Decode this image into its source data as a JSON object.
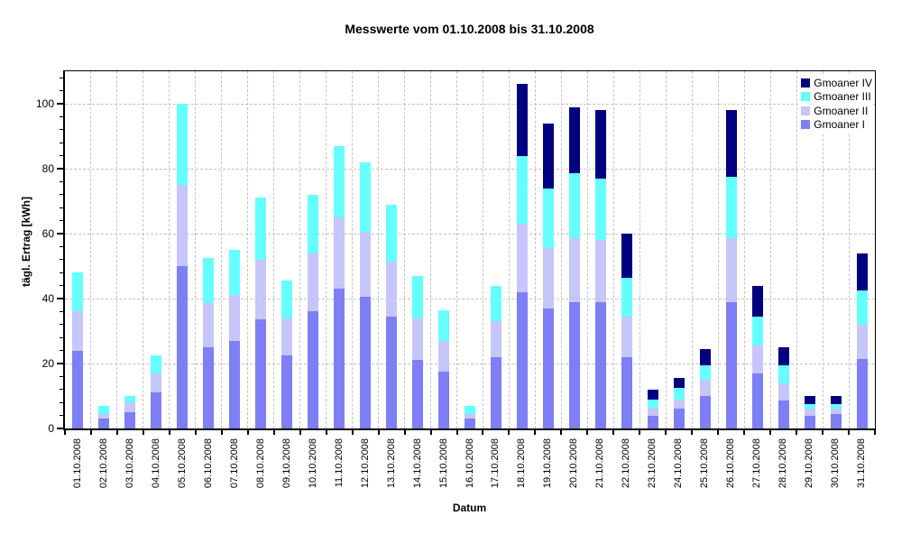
{
  "chart_data": {
    "type": "bar",
    "stacked": true,
    "title": "Messwerte vom 01.10.2008 bis 31.10.2008",
    "xlabel": "Datum",
    "ylabel": "tägl. Ertrag [kWh]",
    "ylim": [
      0,
      110
    ],
    "yticks": [
      0,
      20,
      40,
      60,
      80,
      100
    ],
    "y_minor_tick_step": 4,
    "grid": true,
    "legend_position": "top-right-inside",
    "legend_order": [
      "Gmoaner IV",
      "Gmoaner III",
      "Gmoaner II",
      "Gmoaner I"
    ],
    "categories": [
      "01.10.2008",
      "02.10.2008",
      "03.10.2008",
      "04.10.2008",
      "05.10.2008",
      "06.10.2008",
      "07.10.2008",
      "08.10.2008",
      "09.10.2008",
      "10.10.2008",
      "11.10.2008",
      "12.10.2008",
      "13.10.2008",
      "14.10.2008",
      "15.10.2008",
      "16.10.2008",
      "17.10.2008",
      "18.10.2008",
      "19.10.2008",
      "20.10.2008",
      "21.10.2008",
      "22.10.2008",
      "23.10.2008",
      "24.10.2008",
      "25.10.2008",
      "26.10.2008",
      "27.10.2008",
      "28.10.2008",
      "29.10.2008",
      "30.10.2008",
      "31.10.2008"
    ],
    "series": [
      {
        "name": "Gmoaner I",
        "color": "#7e7ef5",
        "values": [
          24,
          3,
          5,
          11,
          50,
          25,
          27,
          33.5,
          22.5,
          36,
          43,
          40.5,
          34.5,
          21,
          17.5,
          3,
          22,
          42,
          37,
          39,
          39,
          22,
          4,
          6,
          10,
          39,
          17,
          8.5,
          4,
          4.5,
          21.5
        ]
      },
      {
        "name": "Gmoaner II",
        "color": "#c6c6fa",
        "values": [
          12,
          1.5,
          3,
          6,
          25,
          13.5,
          14,
          18.5,
          11.5,
          18,
          22,
          20,
          17,
          13,
          9.5,
          1.5,
          11,
          21,
          18.5,
          19.5,
          19,
          12.5,
          2.5,
          3,
          5,
          19.5,
          8.5,
          5.5,
          2,
          1.5,
          10.5
        ]
      },
      {
        "name": "Gmoaner III",
        "color": "#66ffff",
        "values": [
          12,
          2.5,
          2,
          5.5,
          25,
          14,
          14,
          19,
          11.5,
          18,
          22,
          21.5,
          17.5,
          13,
          9.5,
          2.5,
          11,
          21,
          18.5,
          20,
          19,
          12,
          2.5,
          3.5,
          4.5,
          19,
          9,
          5.5,
          1.5,
          1.5,
          10.5
        ]
      },
      {
        "name": "Gmoaner IV",
        "color": "#000080",
        "values": [
          0,
          0,
          0,
          0,
          0,
          0,
          0,
          0,
          0,
          0,
          0,
          0,
          0,
          0,
          0,
          0,
          0,
          22,
          20,
          20.5,
          21,
          13.5,
          3,
          3,
          5,
          20.5,
          9.5,
          5.5,
          2.5,
          2.5,
          11.5
        ]
      }
    ],
    "colors": {
      "axis": "#000000",
      "gridline": "#c3c3c3",
      "background": "#ffffff"
    }
  }
}
